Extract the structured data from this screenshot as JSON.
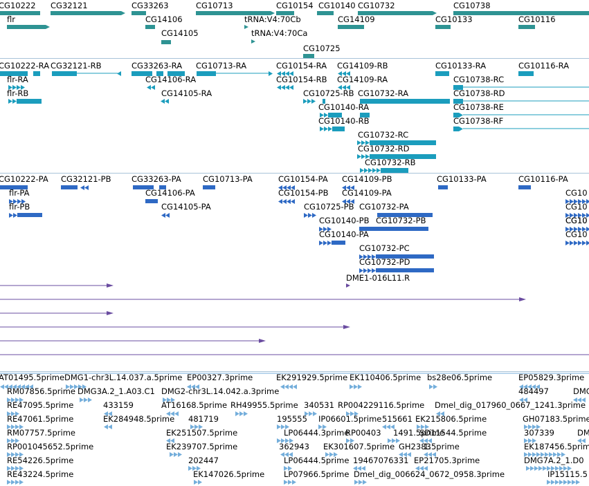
{
  "colors": {
    "gene_track": "#2e9393",
    "transcript_track": "#1b9dbd",
    "protein_track": "#2e69c4",
    "clone_track": "#6a4ca0",
    "est_track": "#74aedb",
    "separator": "#a8c2d8"
  },
  "icons": {
    "strand_marker": "chevron-arrow-icon"
  },
  "gene_track": {
    "labels": [
      "CG10222",
      "CG32121",
      "CG33263",
      "CG10713",
      "CG10154",
      "CG10140",
      "CG10732",
      "CG10738",
      "flr",
      "CG14106",
      "tRNA:V4:70Cb",
      "CG14109",
      "CG10133",
      "CG10116",
      "CG14105",
      "tRNA:V4:70Ca",
      "CG10725"
    ]
  },
  "transcript_track": {
    "labels": [
      "CG10222-RA",
      "CG32121-RB",
      "CG33263-RA",
      "CG10713-RA",
      "CG10154-RA",
      "CG14109-RB",
      "CG10133-RA",
      "CG10116-RA",
      "flr-RA",
      "CG14106-RA",
      "CG10154-RB",
      "CG14109-RA",
      "CG10738-RC",
      "flr-RB",
      "CG14105-RA",
      "CG10725-RB",
      "CG10732-RA",
      "CG10738-RD",
      "CG10140-RA",
      "CG10738-RE",
      "CG10140-RB",
      "CG10738-RF",
      "CG10732-RC",
      "CG10732-RD",
      "CG10732-RB"
    ]
  },
  "protein_track": {
    "labels": [
      "CG10222-PA",
      "CG32121-PB",
      "CG33263-PA",
      "CG10713-PA",
      "CG10154-PA",
      "CG14109-PB",
      "CG10133-PA",
      "CG10116-PA",
      "CG10",
      "flr-PA",
      "CG14106-PA",
      "CG10154-PB",
      "CG14109-PA",
      "CG10",
      "flr-PB",
      "CG14105-PA",
      "CG10725-PB",
      "CG10732-PA",
      "CG10",
      "CG10140-PB",
      "CG10732-PB",
      "CG10",
      "CG10140-PA",
      "CG10",
      "CG10732-PC",
      "CG10732-PD"
    ]
  },
  "clone_track": {
    "labels": [
      "DME1-016L11.R"
    ]
  },
  "est_track": {
    "labels": [
      "AT01495.5prime",
      "DMG1-chr3L.14.037.a.5prime",
      "EP00327.3prime",
      "EK291929.5prime",
      "EK110406.5prime",
      "bs28e06.5prime",
      "EP05829.3prime",
      "RM07856.5prime",
      "DMG3A.2_1.A03.C1",
      "DMG2-chr3L.14.042.a.3prime",
      "484497",
      "DMG",
      "RE47095.5prime",
      "433159",
      "AT16168.5prime",
      "RH49955.5prime",
      "340531",
      "RP004229116.5prime",
      "Dmel_dig_017960_0667_1241.3prime",
      "RE47061.5prime",
      "EK284948.5prime",
      "481719",
      "195555",
      "IP06601.5prime",
      "515661",
      "EK215806.5prime",
      "GH07183.5prime",
      "RM07757.5prime",
      "EK251507.5prime",
      "LP06444.3prime",
      "RP00403",
      "1491.5prime",
      "SD11544.5prime",
      "307339",
      "DM",
      "RP001045652.5prime",
      "EK239707.5prime",
      "362943",
      "EK301607.5prime",
      "GH2383",
      "1.5prime",
      "EK187456.5prime",
      "RE54226.5prime",
      "202447",
      "LP06444.5prime",
      "19467076331",
      "EP21705.3prime",
      "DMG7A.2_1.D0",
      "RE43224.5prime",
      "EK147026.5prime",
      "LP07966.5prime",
      "Dmel_dig_006624_0672_0958.3prime",
      "IP15115.5"
    ]
  }
}
